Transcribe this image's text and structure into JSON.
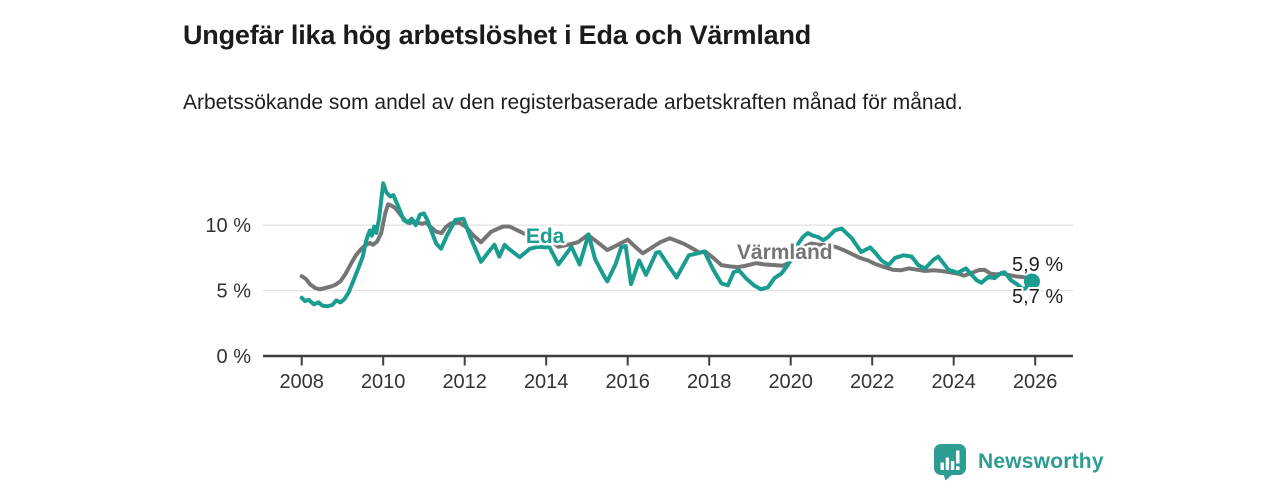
{
  "header": {
    "title": "Ungefär lika hög arbetslöshet i Eda och Värmland",
    "subtitle": "Arbetssökande som andel av den registerbaserade arbetskraften månad för månad."
  },
  "footer": {
    "brand": "Newsworthy"
  },
  "colors": {
    "eda_teal": "#1a9c8e",
    "varmland_gray": "#757575",
    "gridline": "#e3e3e3",
    "axis": "#3f3f3f",
    "axis_text": "#333333",
    "end_label_text": "#1f1f1f",
    "logo_teal": "#2d9c92"
  },
  "chart_data": {
    "type": "line",
    "title": "Ungefär lika hög arbetslöshet i Eda och Värmland",
    "subtitle": "Arbetssökande som andel av den registerbaserade arbetskraften månad för månad.",
    "xlabel": "",
    "ylabel": "",
    "x_ticks": [
      2008,
      2010,
      2012,
      2014,
      2016,
      2018,
      2020,
      2022,
      2024,
      2026
    ],
    "x_range": [
      2007.9,
      2026.9
    ],
    "y_ticks": [
      {
        "value": 0,
        "label": "0 %"
      },
      {
        "value": 5,
        "label": "5 %"
      },
      {
        "value": 10,
        "label": "10 %"
      }
    ],
    "y_range": [
      0,
      13.8
    ],
    "grid": "horizontal-only",
    "legend_position": "inline-labels",
    "series": [
      {
        "name": "Värmland",
        "color": "#757575",
        "points": [
          [
            2008.0,
            6.1
          ],
          [
            2008.1,
            5.9
          ],
          [
            2008.2,
            5.5
          ],
          [
            2008.33,
            5.2
          ],
          [
            2008.45,
            5.1
          ],
          [
            2008.58,
            5.2
          ],
          [
            2008.7,
            5.3
          ],
          [
            2008.83,
            5.45
          ],
          [
            2008.95,
            5.7
          ],
          [
            2009.08,
            6.3
          ],
          [
            2009.2,
            7.0
          ],
          [
            2009.33,
            7.7
          ],
          [
            2009.45,
            8.15
          ],
          [
            2009.58,
            8.5
          ],
          [
            2009.67,
            8.65
          ],
          [
            2009.75,
            8.5
          ],
          [
            2009.85,
            8.75
          ],
          [
            2009.95,
            9.4
          ],
          [
            2010.05,
            10.9
          ],
          [
            2010.12,
            11.6
          ],
          [
            2010.2,
            11.5
          ],
          [
            2010.3,
            11.3
          ],
          [
            2010.45,
            10.7
          ],
          [
            2010.55,
            10.35
          ],
          [
            2010.65,
            10.15
          ],
          [
            2010.75,
            10.3
          ],
          [
            2010.85,
            10.2
          ],
          [
            2010.95,
            10.1
          ],
          [
            2011.05,
            10.2
          ],
          [
            2011.15,
            9.9
          ],
          [
            2011.3,
            9.5
          ],
          [
            2011.43,
            9.4
          ],
          [
            2011.55,
            9.9
          ],
          [
            2011.67,
            10.15
          ],
          [
            2011.87,
            10.2
          ],
          [
            2012.04,
            9.85
          ],
          [
            2012.2,
            9.25
          ],
          [
            2012.4,
            8.7
          ],
          [
            2012.65,
            9.5
          ],
          [
            2012.94,
            9.9
          ],
          [
            2013.1,
            9.9
          ],
          [
            2013.3,
            9.6
          ],
          [
            2013.63,
            9.1
          ],
          [
            2013.87,
            8.7
          ],
          [
            2014.05,
            9.0
          ],
          [
            2014.3,
            8.35
          ],
          [
            2014.53,
            8.5
          ],
          [
            2014.78,
            8.7
          ],
          [
            2015.02,
            9.25
          ],
          [
            2015.26,
            8.7
          ],
          [
            2015.5,
            8.1
          ],
          [
            2015.76,
            8.5
          ],
          [
            2016.0,
            8.9
          ],
          [
            2016.2,
            8.3
          ],
          [
            2016.37,
            7.85
          ],
          [
            2016.6,
            8.3
          ],
          [
            2016.8,
            8.7
          ],
          [
            2017.03,
            9.0
          ],
          [
            2017.2,
            8.8
          ],
          [
            2017.4,
            8.55
          ],
          [
            2017.6,
            8.2
          ],
          [
            2017.76,
            7.9
          ],
          [
            2017.9,
            8.0
          ],
          [
            2018.1,
            7.5
          ],
          [
            2018.3,
            6.95
          ],
          [
            2018.5,
            6.85
          ],
          [
            2018.7,
            6.8
          ],
          [
            2018.9,
            6.9
          ],
          [
            2019.15,
            7.1
          ],
          [
            2019.35,
            7.0
          ],
          [
            2019.6,
            6.95
          ],
          [
            2019.8,
            6.9
          ],
          [
            2019.95,
            7.1
          ],
          [
            2020.1,
            7.6
          ],
          [
            2020.3,
            8.3
          ],
          [
            2020.5,
            8.6
          ],
          [
            2020.7,
            8.5
          ],
          [
            2020.9,
            8.45
          ],
          [
            2021.1,
            8.35
          ],
          [
            2021.3,
            8.1
          ],
          [
            2021.5,
            7.8
          ],
          [
            2021.7,
            7.5
          ],
          [
            2021.9,
            7.3
          ],
          [
            2022.1,
            7.0
          ],
          [
            2022.3,
            6.8
          ],
          [
            2022.5,
            6.6
          ],
          [
            2022.7,
            6.55
          ],
          [
            2022.9,
            6.7
          ],
          [
            2023.1,
            6.6
          ],
          [
            2023.3,
            6.5
          ],
          [
            2023.5,
            6.55
          ],
          [
            2023.7,
            6.5
          ],
          [
            2023.9,
            6.4
          ],
          [
            2024.1,
            6.3
          ],
          [
            2024.25,
            6.15
          ],
          [
            2024.4,
            6.3
          ],
          [
            2024.6,
            6.55
          ],
          [
            2024.75,
            6.6
          ],
          [
            2024.9,
            6.3
          ],
          [
            2025.05,
            6.25
          ],
          [
            2025.2,
            6.3
          ],
          [
            2025.35,
            6.2
          ],
          [
            2025.5,
            6.1
          ],
          [
            2025.65,
            6.05
          ],
          [
            2025.8,
            6.0
          ],
          [
            2025.92,
            5.9
          ]
        ]
      },
      {
        "name": "Eda",
        "color": "#1a9c8e",
        "points": [
          [
            2008.0,
            4.45
          ],
          [
            2008.08,
            4.2
          ],
          [
            2008.17,
            4.3
          ],
          [
            2008.3,
            3.95
          ],
          [
            2008.42,
            4.1
          ],
          [
            2008.5,
            3.85
          ],
          [
            2008.63,
            3.8
          ],
          [
            2008.75,
            3.9
          ],
          [
            2008.85,
            4.25
          ],
          [
            2008.95,
            4.1
          ],
          [
            2009.05,
            4.35
          ],
          [
            2009.15,
            4.85
          ],
          [
            2009.25,
            5.6
          ],
          [
            2009.4,
            6.8
          ],
          [
            2009.5,
            7.6
          ],
          [
            2009.55,
            8.4
          ],
          [
            2009.6,
            9.0
          ],
          [
            2009.67,
            9.6
          ],
          [
            2009.72,
            9.2
          ],
          [
            2009.78,
            9.9
          ],
          [
            2009.83,
            9.4
          ],
          [
            2009.9,
            10.5
          ],
          [
            2009.95,
            11.9
          ],
          [
            2010.0,
            13.2
          ],
          [
            2010.08,
            12.5
          ],
          [
            2010.17,
            12.2
          ],
          [
            2010.25,
            12.3
          ],
          [
            2010.4,
            11.2
          ],
          [
            2010.5,
            10.4
          ],
          [
            2010.6,
            10.2
          ],
          [
            2010.7,
            10.5
          ],
          [
            2010.8,
            10.0
          ],
          [
            2010.9,
            10.8
          ],
          [
            2011.0,
            10.9
          ],
          [
            2011.1,
            10.3
          ],
          [
            2011.15,
            9.8
          ],
          [
            2011.3,
            8.6
          ],
          [
            2011.42,
            8.2
          ],
          [
            2011.57,
            9.25
          ],
          [
            2011.77,
            10.4
          ],
          [
            2011.97,
            10.5
          ],
          [
            2012.15,
            9.0
          ],
          [
            2012.4,
            7.2
          ],
          [
            2012.56,
            7.85
          ],
          [
            2012.73,
            8.5
          ],
          [
            2012.85,
            7.6
          ],
          [
            2012.98,
            8.5
          ],
          [
            2013.08,
            8.2
          ],
          [
            2013.35,
            7.55
          ],
          [
            2013.6,
            8.2
          ],
          [
            2013.8,
            8.35
          ],
          [
            2014.0,
            8.3
          ],
          [
            2014.05,
            8.5
          ],
          [
            2014.3,
            7.0
          ],
          [
            2014.62,
            8.35
          ],
          [
            2014.82,
            7.0
          ],
          [
            2015.04,
            9.3
          ],
          [
            2015.2,
            7.4
          ],
          [
            2015.42,
            6.1
          ],
          [
            2015.5,
            5.7
          ],
          [
            2015.7,
            7.0
          ],
          [
            2015.84,
            8.3
          ],
          [
            2015.95,
            8.4
          ],
          [
            2016.08,
            5.5
          ],
          [
            2016.28,
            7.3
          ],
          [
            2016.45,
            6.2
          ],
          [
            2016.7,
            7.9
          ],
          [
            2016.78,
            7.95
          ],
          [
            2017.0,
            6.9
          ],
          [
            2017.2,
            6.0
          ],
          [
            2017.5,
            7.7
          ],
          [
            2017.72,
            7.85
          ],
          [
            2017.88,
            8.0
          ],
          [
            2018.1,
            6.6
          ],
          [
            2018.3,
            5.55
          ],
          [
            2018.46,
            5.4
          ],
          [
            2018.6,
            6.4
          ],
          [
            2018.73,
            6.55
          ],
          [
            2018.9,
            5.95
          ],
          [
            2019.1,
            5.4
          ],
          [
            2019.27,
            5.1
          ],
          [
            2019.44,
            5.25
          ],
          [
            2019.6,
            5.95
          ],
          [
            2019.77,
            6.3
          ],
          [
            2019.93,
            6.95
          ],
          [
            2020.0,
            7.45
          ],
          [
            2020.12,
            8.3
          ],
          [
            2020.3,
            9.1
          ],
          [
            2020.42,
            9.4
          ],
          [
            2020.55,
            9.2
          ],
          [
            2020.67,
            9.1
          ],
          [
            2020.8,
            8.85
          ],
          [
            2020.92,
            9.1
          ],
          [
            2021.08,
            9.6
          ],
          [
            2021.25,
            9.75
          ],
          [
            2021.4,
            9.3
          ],
          [
            2021.5,
            9.0
          ],
          [
            2021.73,
            7.95
          ],
          [
            2021.95,
            8.3
          ],
          [
            2022.1,
            7.8
          ],
          [
            2022.23,
            7.3
          ],
          [
            2022.4,
            6.95
          ],
          [
            2022.56,
            7.5
          ],
          [
            2022.77,
            7.7
          ],
          [
            2022.97,
            7.6
          ],
          [
            2023.13,
            6.95
          ],
          [
            2023.3,
            6.7
          ],
          [
            2023.5,
            7.35
          ],
          [
            2023.62,
            7.6
          ],
          [
            2023.87,
            6.6
          ],
          [
            2024.1,
            6.35
          ],
          [
            2024.3,
            6.7
          ],
          [
            2024.56,
            5.8
          ],
          [
            2024.68,
            5.6
          ],
          [
            2024.85,
            6.05
          ],
          [
            2025.0,
            5.95
          ],
          [
            2025.17,
            6.35
          ],
          [
            2025.25,
            6.4
          ],
          [
            2025.4,
            5.8
          ],
          [
            2025.57,
            5.45
          ],
          [
            2025.7,
            5.1
          ],
          [
            2025.83,
            5.3
          ],
          [
            2025.92,
            5.7
          ]
        ]
      }
    ],
    "series_labels": [
      {
        "text": "Eda",
        "t": 2013.5,
        "value": 8.64,
        "color": "#1a9c8e"
      },
      {
        "text": "Värmland",
        "t": 2018.68,
        "value": 7.42,
        "color": "#757575"
      }
    ],
    "end_labels": [
      {
        "text": "5,9 %",
        "t": 2025.43,
        "value": 6.5
      },
      {
        "text": "5,7 %",
        "t": 2025.43,
        "value": 4.05
      }
    ],
    "marker": {
      "series": "Eda",
      "t": 2025.92,
      "value": 5.7,
      "radius": 8
    }
  }
}
